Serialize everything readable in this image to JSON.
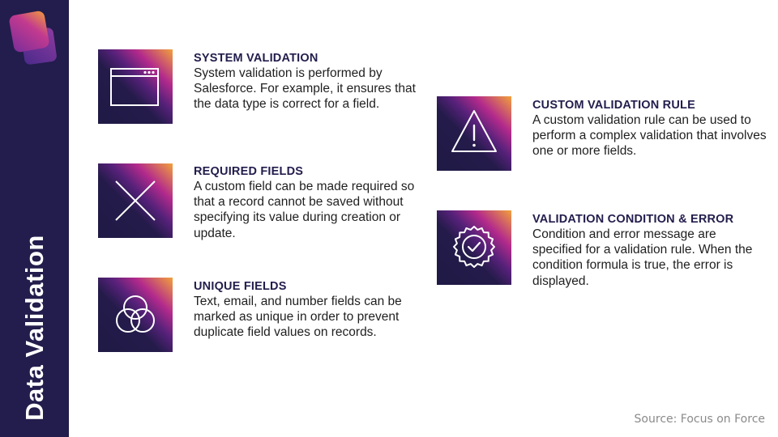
{
  "sidebar": {
    "title": "Data Validation"
  },
  "items": [
    {
      "heading": "SYSTEM VALIDATION",
      "body": "System validation is performed by Salesforce. For example, it ensures that the data type is correct for a field.",
      "icon": "browser-window-icon"
    },
    {
      "heading": "REQUIRED FIELDS",
      "body": "A custom field can be made required so that a record cannot be saved without specifying its value during creation or update.",
      "icon": "x-cross-icon"
    },
    {
      "heading": "UNIQUE FIELDS",
      "body": "Text, email, and number fields can be marked as unique in order to prevent duplicate field values on records.",
      "icon": "venn-circles-icon"
    },
    {
      "heading": "CUSTOM VALIDATION RULE",
      "body": "A custom validation rule can be used to perform a complex validation that involves one or more fields.",
      "icon": "warning-triangle-icon"
    },
    {
      "heading": "VALIDATION CONDITION & ERROR",
      "body": "Condition and error message are specified for a validation rule. When the condition formula is true, the error is displayed.",
      "icon": "verified-badge-icon"
    }
  ],
  "footer": {
    "source": "Source: Focus on Force"
  },
  "colors": {
    "sidebar": "#221d4c",
    "heading": "#221d4c",
    "tile_dark": "#1f1a45",
    "tile_magenta": "#b32a8c",
    "tile_orange": "#f2a13b"
  }
}
